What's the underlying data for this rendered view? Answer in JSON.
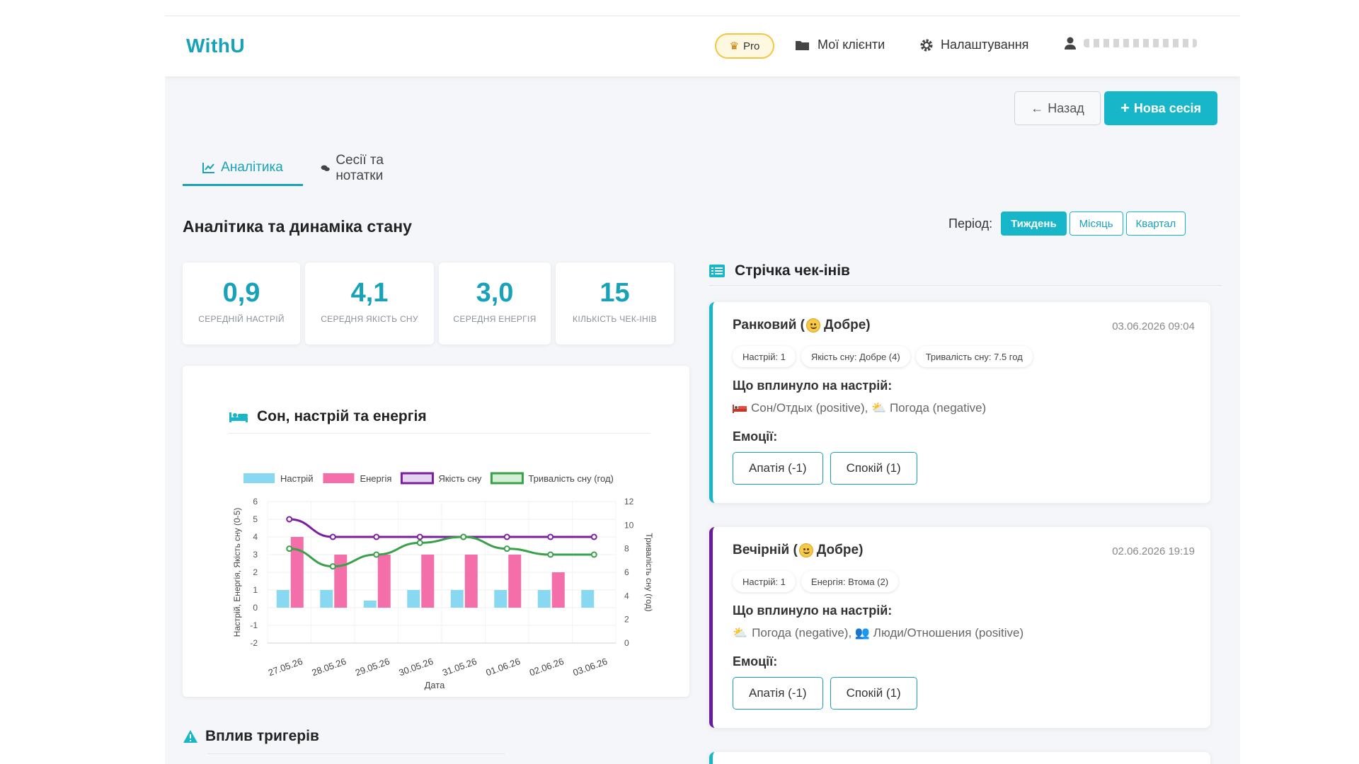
{
  "nav": {
    "brand": "WithU",
    "pro": "Pro",
    "clients": "Мої клієнти",
    "settings": "Налаштування"
  },
  "actions": {
    "back": "Назад",
    "new_session": "Нова сесія"
  },
  "tabs": [
    {
      "label": "Аналітика"
    },
    {
      "label": "Сесії та нотатки"
    }
  ],
  "section_title": "Аналітика та динаміка стану",
  "period": {
    "label": "Період:",
    "options": [
      "Тиждень",
      "Місяць",
      "Квартал"
    ],
    "selected": "Тиждень"
  },
  "stats": [
    {
      "value": "0,9",
      "label": "СЕРЕДНІЙ НАСТРІЙ"
    },
    {
      "value": "4,1",
      "label": "СЕРЕДНЯ ЯКІСТЬ СНУ"
    },
    {
      "value": "3,0",
      "label": "СЕРЕДНЯ ЕНЕРГІЯ"
    },
    {
      "value": "15",
      "label": "КІЛЬКІСТЬ ЧЕК-ІНІВ"
    }
  ],
  "chart": {
    "title": "Сон, настрій та енергія"
  },
  "chart_data": {
    "type": "bar",
    "title": "Сон, настрій та енергія",
    "categories": [
      "27.05.26",
      "28.05.26",
      "29.05.26",
      "30.05.26",
      "31.05.26",
      "01.06.26",
      "02.06.26",
      "03.06.26"
    ],
    "xlabel": "Дата",
    "ylabel": "Настрій, Енергія, Якість сну (0-5)",
    "ylabel_right": "Тривалість сну (год)",
    "ylim": [
      -2,
      6
    ],
    "ylim_right": [
      0,
      12
    ],
    "yticks": [
      "6",
      "5",
      "4",
      "3",
      "2",
      "1",
      "0",
      "-1",
      "-2"
    ],
    "yticks_right": [
      "12",
      "10",
      "8",
      "6",
      "4",
      "2",
      "0"
    ],
    "legend_position": "top",
    "grid": true,
    "series": [
      {
        "name": "Настрій",
        "kind": "bar",
        "axis": "left",
        "color": "#87d8f0",
        "values": [
          1,
          1,
          0.4,
          1,
          1,
          1,
          1,
          1
        ]
      },
      {
        "name": "Енергія",
        "kind": "bar",
        "axis": "left",
        "color": "#f46fa9",
        "values": [
          4,
          3,
          3,
          3,
          3,
          3,
          2,
          null
        ]
      },
      {
        "name": "Якість сну",
        "kind": "line",
        "axis": "left",
        "color": "#7b1fa2",
        "values": [
          5,
          4,
          4,
          4,
          4,
          4,
          4,
          4
        ]
      },
      {
        "name": "Тривалість сну (год)",
        "kind": "line",
        "axis": "right",
        "color": "#3aa04a",
        "values": [
          8,
          6.5,
          7.5,
          8.5,
          9,
          8,
          7.5,
          7.5
        ]
      }
    ]
  },
  "triggers": {
    "title": "Вплив тригерів"
  },
  "feed": {
    "title": "Стрічка чек-інів",
    "items": [
      {
        "title_prefix": "Ранковий (",
        "title_suffix": "Добре)",
        "date": "03.06.2026 09:04",
        "chips": [
          "Настрій: 1",
          "Якість сну: Добре (4)",
          "Тривалість сну: 7.5 год"
        ],
        "influence_label": "Що вплинуло на настрій:",
        "influence": "Сон/Отдых (positive), ⛅ Погода (negative)",
        "emotions_label": "Емоції:",
        "emotions": [
          "Апатія (-1)",
          "Спокій (1)"
        ],
        "accent": "#17b6c9"
      },
      {
        "title_prefix": "Вечірній (",
        "title_suffix": "Добре)",
        "date": "02.06.2026 19:19",
        "chips": [
          "Настрій: 1",
          "Енергія: Втома (2)"
        ],
        "influence_label": "Що вплинуло на настрій:",
        "influence": "Погода (negative), 👥 Люди/Отношения (positive)",
        "emotions_label": "Емоції:",
        "emotions": [
          "Апатія (-1)",
          "Спокій (1)"
        ],
        "accent": "#6a1b9a"
      }
    ]
  }
}
